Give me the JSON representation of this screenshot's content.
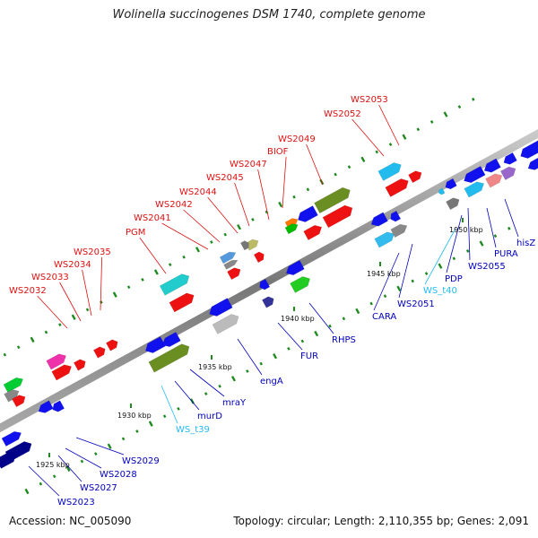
{
  "title": "Wolinella succinogenes DSM 1740, complete genome",
  "accession": "Accession: NC_005090",
  "summary": "Topology: circular; Length: 2,110,355 bp; Genes: 2,091",
  "colors": {
    "forward_label": "#dd1111",
    "reverse_label": "#0000bb",
    "trna_label": "#22bbee",
    "backbone": "#888888"
  },
  "scale_ticks": [
    "1925 kbp",
    "1930 kbp",
    "1935 kbp",
    "1940 kbp",
    "1945 kbp",
    "1950 kbp"
  ],
  "forward_labels": [
    "WS2032",
    "WS2033",
    "WS2034",
    "WS2035",
    "PGM",
    "WS2041",
    "WS2042",
    "WS2044",
    "WS2045",
    "WS2047",
    "BIOF",
    "WS2049",
    "WS2052",
    "WS2053"
  ],
  "reverse_labels": [
    "WS2023",
    "WS2027",
    "WS2028",
    "WS2029",
    "WS_t39",
    "murD",
    "mraY",
    "engA",
    "FUR",
    "RHPS",
    "CARA",
    "WS2051",
    "WS_t40",
    "PDP",
    "WS2055",
    "PURA",
    "hisZ"
  ]
}
